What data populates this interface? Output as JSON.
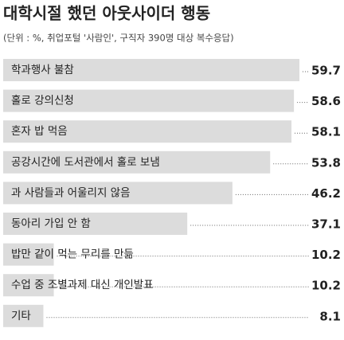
{
  "chart_data": {
    "type": "bar",
    "orientation": "horizontal",
    "title": "대학시절 했던 아웃사이더 행동",
    "subtitle": "(단위 : %, 취업포털 '사람인', 구직자 390명 대상 복수응답)",
    "categories": [
      "학과행사 불참",
      "홀로 강의신청",
      "혼자 밥 먹음",
      "공강시간에 도서관에서 홀로 보냄",
      "과 사람들과 어울리지 않음",
      "동아리 가입 안 함",
      "밥만 같이 먹는 무리를 만듦",
      "수업 중 조별과제 대신 개인발표",
      "기타"
    ],
    "values": [
      59.7,
      58.6,
      58.1,
      53.8,
      46.2,
      37.1,
      10.2,
      10.2,
      8.1
    ],
    "color": "#dcdcdc"
  }
}
